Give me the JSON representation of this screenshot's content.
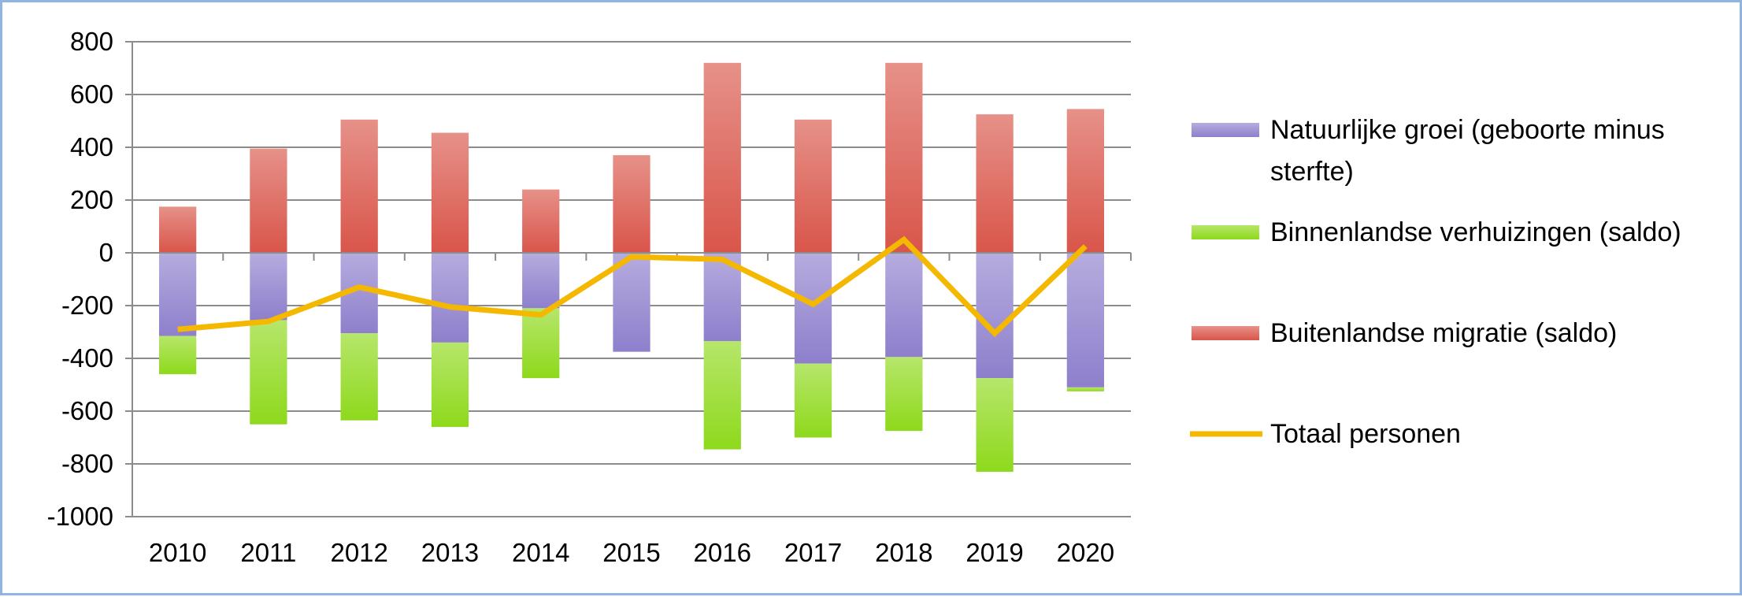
{
  "chart_data": {
    "type": "bar",
    "stacked": true,
    "categories": [
      "2010",
      "2011",
      "2012",
      "2013",
      "2014",
      "2015",
      "2016",
      "2017",
      "2018",
      "2019",
      "2020"
    ],
    "ylim": [
      -1000,
      800
    ],
    "yticks": [
      800,
      600,
      400,
      200,
      0,
      -200,
      -400,
      -600,
      -800,
      -1000
    ],
    "grid": true,
    "legend_position": "right",
    "series": [
      {
        "name": "Natuurlijke groei (geboorte minus sterfte)",
        "legend_lines": [
          "Natuurlijke groei (geboorte minus",
          "sterfte)"
        ],
        "kind": "bar",
        "color": "#8e7fcc",
        "values": [
          -315,
          -255,
          -305,
          -340,
          -210,
          -375,
          -335,
          -420,
          -395,
          -475,
          -510
        ]
      },
      {
        "name": "Binnenlandse verhuizingen (saldo)",
        "legend_lines": [
          "Binnenlandse verhuizingen (saldo)"
        ],
        "kind": "bar",
        "color": "#8ed91c",
        "values": [
          -145,
          -395,
          -330,
          -320,
          -265,
          0,
          -410,
          -280,
          -280,
          -355,
          -15
        ]
      },
      {
        "name": "Buitenlandse migratie (saldo)",
        "legend_lines": [
          "Buitenlandse migratie (saldo)"
        ],
        "kind": "bar",
        "color": "#d9554a",
        "values": [
          175,
          395,
          505,
          455,
          240,
          370,
          720,
          505,
          720,
          525,
          545
        ]
      },
      {
        "name": "Totaal personen",
        "legend_lines": [
          "Totaal personen"
        ],
        "kind": "line",
        "color": "#f5b800",
        "values": [
          -290,
          -260,
          -130,
          -205,
          -235,
          -15,
          -25,
          -195,
          50,
          -305,
          25
        ]
      }
    ]
  }
}
